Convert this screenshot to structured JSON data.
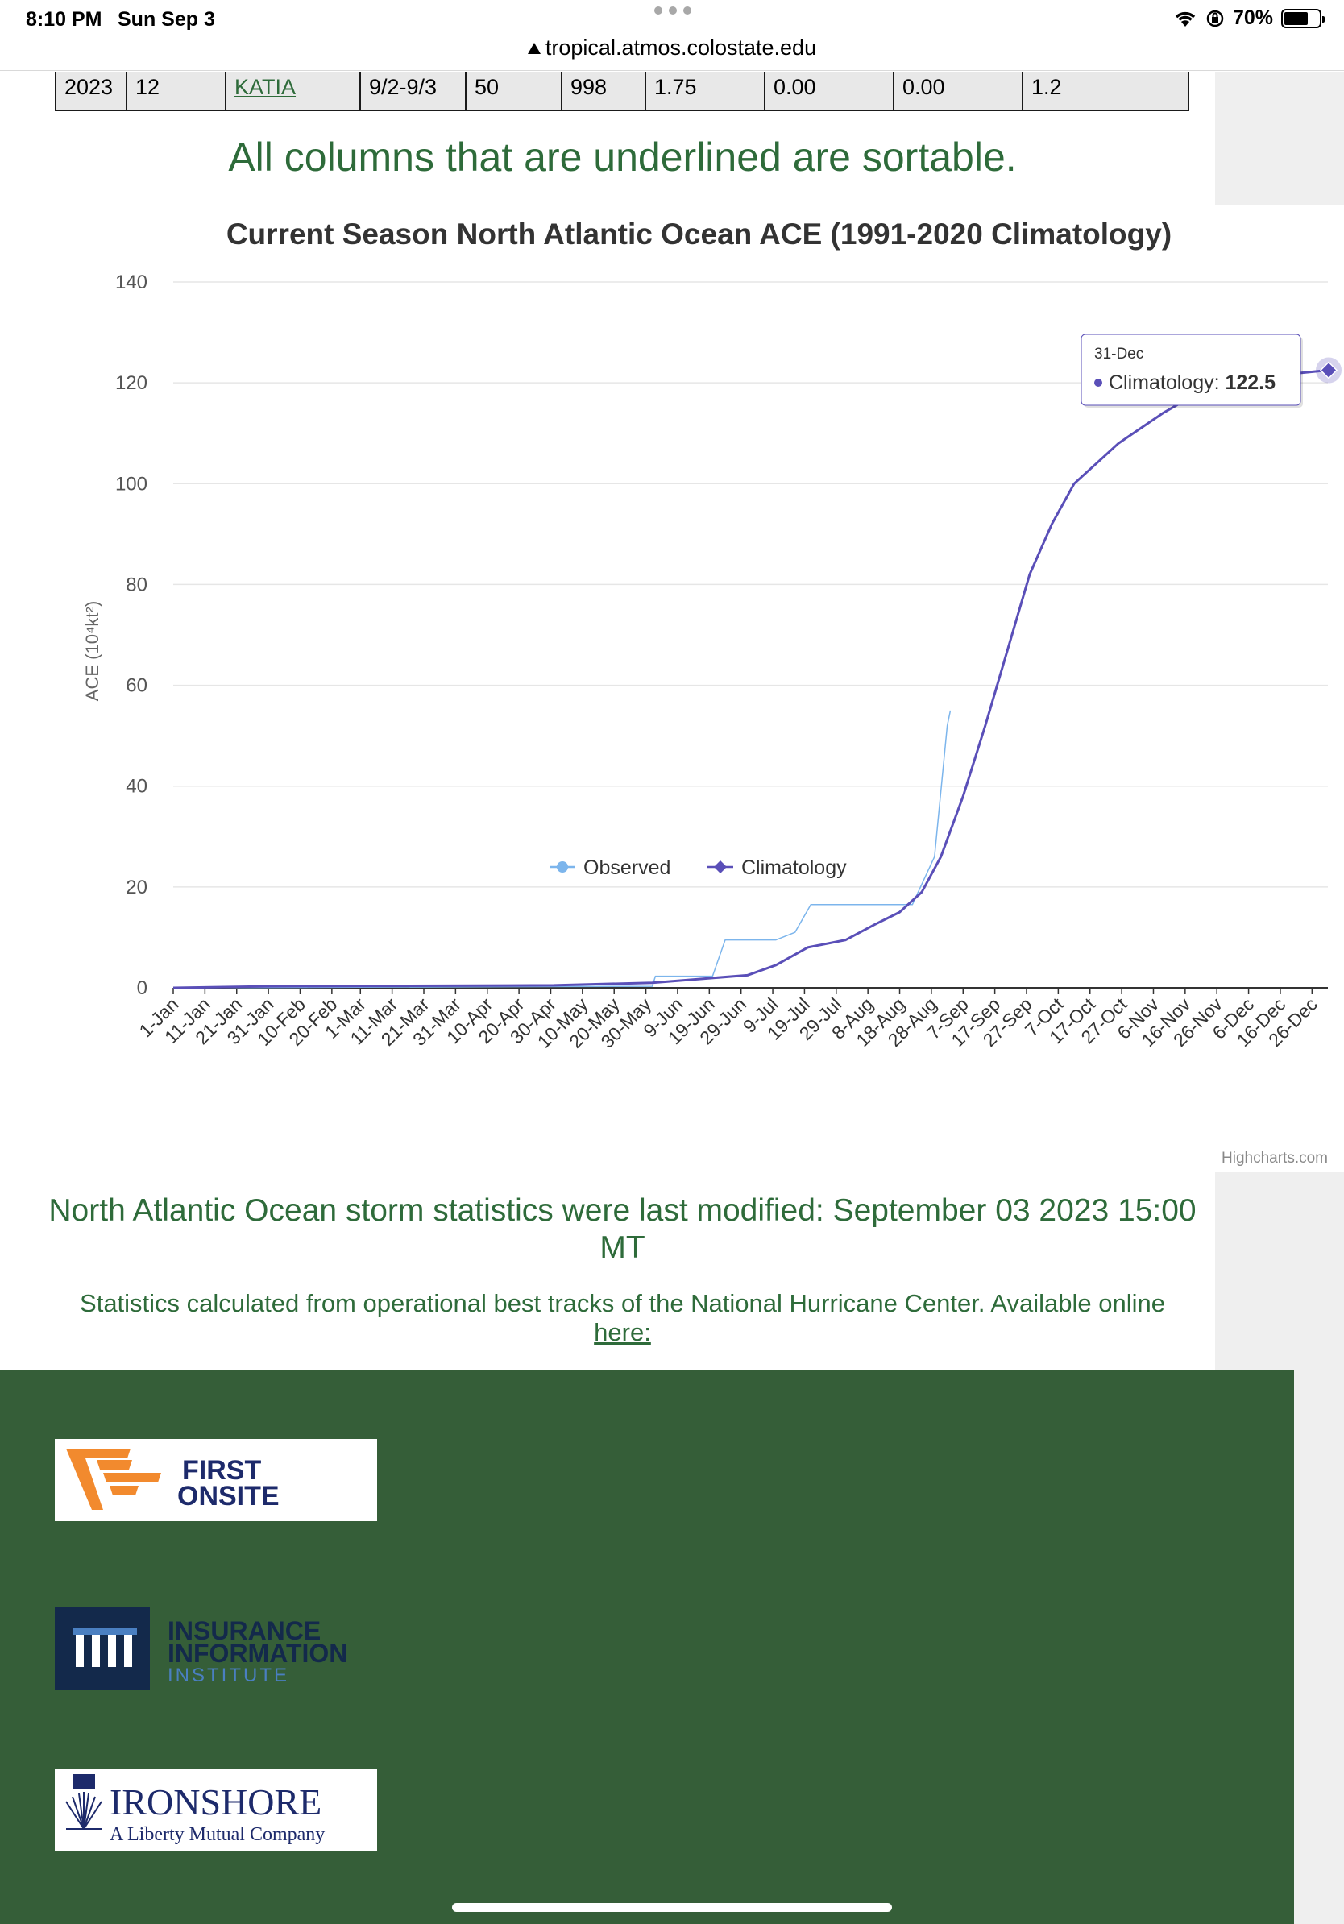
{
  "status_bar": {
    "time": "8:10 PM",
    "date": "Sun Sep 3",
    "url": "tropical.atmos.colostate.edu",
    "battery": "70%",
    "battery_level": 0.7,
    "icons": [
      "wifi-icon",
      "orientation-lock-icon",
      "battery-icon",
      "lock-icon"
    ]
  },
  "storm_row": {
    "cells": [
      "2023",
      "12",
      "KATIA",
      "9/2-9/3",
      "50",
      "998",
      "1.75",
      "0.00",
      "0.00",
      "1.2"
    ]
  },
  "sortable_note": "All columns that are underlined are sortable.",
  "chart_data": {
    "type": "line",
    "title": "Current Season North Atlantic Ocean ACE (1991-2020 Climatology)",
    "ylabel": "ACE (10⁴kt²)",
    "xlabel": "",
    "ylim": [
      0,
      140
    ],
    "yticks": [
      0,
      20,
      40,
      60,
      80,
      100,
      120,
      140
    ],
    "grid": true,
    "legend": "bottom-center",
    "x_ticks": [
      "1-Jan",
      "11-Jan",
      "21-Jan",
      "31-Jan",
      "10-Feb",
      "20-Feb",
      "1-Mar",
      "11-Mar",
      "21-Mar",
      "31-Mar",
      "10-Apr",
      "20-Apr",
      "30-Apr",
      "10-May",
      "20-May",
      "30-May",
      "9-Jun",
      "19-Jun",
      "29-Jun",
      "9-Jul",
      "19-Jul",
      "29-Jul",
      "8-Aug",
      "18-Aug",
      "28-Aug",
      "7-Sep",
      "17-Sep",
      "27-Sep",
      "7-Oct",
      "17-Oct",
      "27-Oct",
      "6-Nov",
      "16-Nov",
      "26-Nov",
      "6-Dec",
      "16-Dec",
      "26-Dec"
    ],
    "series": [
      {
        "name": "Observed",
        "color": "#7cb5ec",
        "points": [
          [
            "1-Jan",
            0
          ],
          [
            "1-Jun",
            0.3
          ],
          [
            "2-Jun",
            2.3
          ],
          [
            "20-Jun",
            2.3
          ],
          [
            "24-Jun",
            9.5
          ],
          [
            "10-Jul",
            9.5
          ],
          [
            "16-Jul",
            11
          ],
          [
            "21-Jul",
            16.5
          ],
          [
            "22-Aug",
            16.5
          ],
          [
            "29-Aug",
            26
          ],
          [
            "2-Sep",
            52
          ],
          [
            "3-Sep",
            55
          ]
        ]
      },
      {
        "name": "Climatology",
        "color": "#5a4fb8",
        "points": [
          [
            "1-Jan",
            0
          ],
          [
            "31-Jan",
            0.3
          ],
          [
            "1-May",
            0.5
          ],
          [
            "1-Jun",
            1
          ],
          [
            "1-Jul",
            2.5
          ],
          [
            "10-Jul",
            4.5
          ],
          [
            "20-Jul",
            8
          ],
          [
            "1-Aug",
            9.5
          ],
          [
            "10-Aug",
            12.5
          ],
          [
            "18-Aug",
            15
          ],
          [
            "25-Aug",
            19
          ],
          [
            "31-Aug",
            26
          ],
          [
            "7-Sep",
            38
          ],
          [
            "14-Sep",
            52
          ],
          [
            "21-Sep",
            67
          ],
          [
            "28-Sep",
            82
          ],
          [
            "5-Oct",
            92
          ],
          [
            "12-Oct",
            100
          ],
          [
            "19-Oct",
            104
          ],
          [
            "26-Oct",
            108
          ],
          [
            "2-Nov",
            111
          ],
          [
            "9-Nov",
            114
          ],
          [
            "16-Nov",
            116.5
          ],
          [
            "23-Nov",
            118.5
          ],
          [
            "30-Nov",
            120
          ],
          [
            "15-Dec",
            121.5
          ],
          [
            "31-Dec",
            122.5
          ]
        ]
      }
    ],
    "tooltip": {
      "date": "31-Dec",
      "series": "Climatology",
      "value": "122.5"
    }
  },
  "credit": "Highcharts.com",
  "modified_text": "North Atlantic Ocean storm statistics were last modified: September 03 2023 15:00 MT",
  "stats_text": "Statistics calculated from operational best tracks of the National Hurricane Center. Available online",
  "stats_link": "here:",
  "sponsors": {
    "first_onsite_1": "FIRST",
    "first_onsite_2": "ONSITE",
    "iii_1": "INSURANCE",
    "iii_2": "INFORMATION",
    "iii_3": "INSTITUTE",
    "ironshore_1": "IRONSHORE",
    "ironshore_2": "A Liberty Mutual Company",
    "colors": {
      "first_onsite_orange": "#f28a2e",
      "first_onsite_navy": "#1d2a6b",
      "iii_navy": "#13294b",
      "iii_blue": "#4a7fc1",
      "footer_green": "#355e38"
    }
  }
}
